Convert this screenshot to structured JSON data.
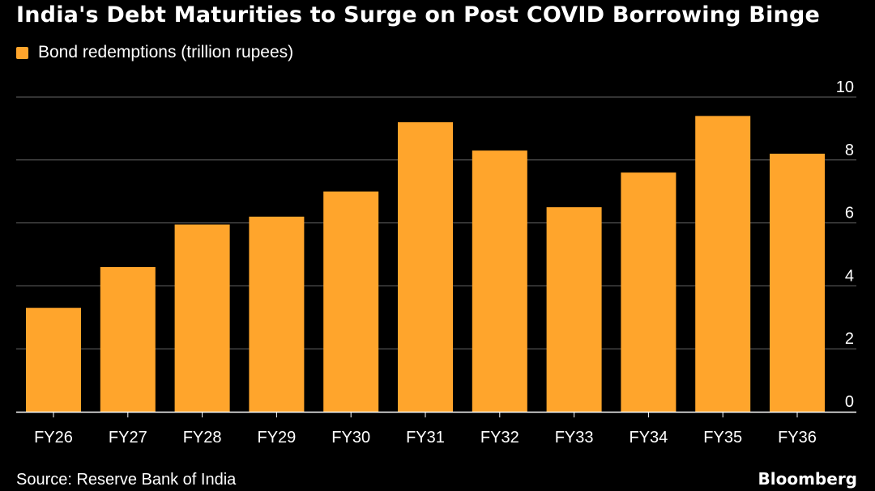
{
  "chart_data": {
    "type": "bar",
    "title": "India's Debt Maturities to Surge on Post COVID Borrowing Binge",
    "legend": "Bond redemptions (trillion rupees)",
    "categories": [
      "FY26",
      "FY27",
      "FY28",
      "FY29",
      "FY30",
      "FY31",
      "FY32",
      "FY33",
      "FY34",
      "FY35",
      "FY36"
    ],
    "series": [
      {
        "name": "Bond redemptions (trillion rupees)",
        "values": [
          3.3,
          4.6,
          5.95,
          6.2,
          7.0,
          9.2,
          8.3,
          6.5,
          7.6,
          9.4,
          8.2
        ]
      }
    ],
    "ylim": [
      0,
      10
    ],
    "yticks": [
      0,
      2,
      4,
      6,
      8,
      10
    ],
    "ytick_labels": [
      "0",
      "2",
      "4",
      "6",
      "8",
      "10"
    ],
    "grid": true,
    "source": "Source: Reserve Bank of India",
    "brand": "Bloomberg",
    "colors": {
      "bar": "#ffa52c",
      "grid": "#666666",
      "axis": "#ffffff",
      "background": "#000000"
    }
  }
}
